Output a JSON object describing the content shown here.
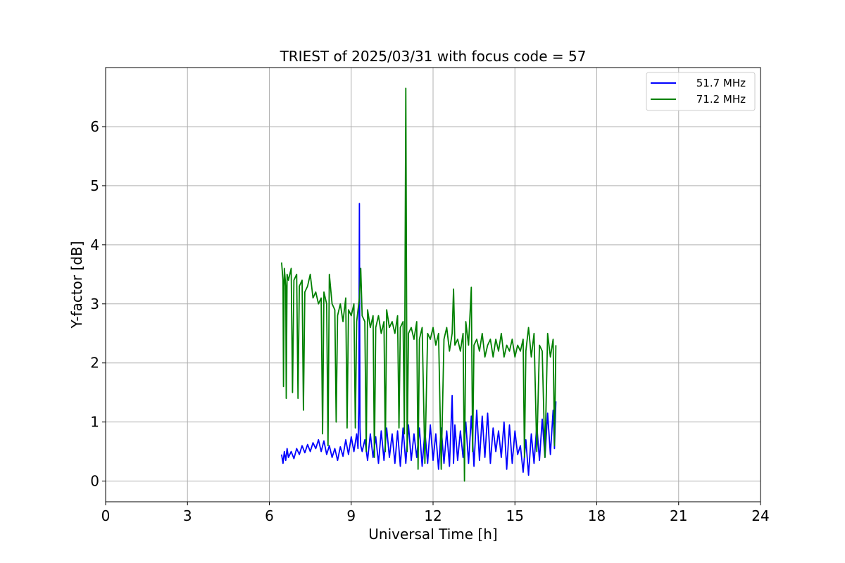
{
  "chart_data": {
    "type": "line",
    "title": "TRIEST of 2025/03/31 with focus code = 57",
    "xlabel": "Universal Time [h]",
    "ylabel": "Y-factor [dB]",
    "xlim": [
      0,
      24
    ],
    "ylim": [
      -0.35,
      7.0
    ],
    "x_ticks": [
      0,
      3,
      6,
      9,
      12,
      15,
      18,
      21,
      24
    ],
    "y_ticks": [
      0,
      1,
      2,
      3,
      4,
      5,
      6
    ],
    "grid": true,
    "legend_position": "top-right",
    "series": [
      {
        "name": "51.7 MHz",
        "color": "#0000ff",
        "x": [
          6.45,
          6.5,
          6.55,
          6.6,
          6.65,
          6.7,
          6.8,
          6.9,
          7.0,
          7.1,
          7.2,
          7.3,
          7.4,
          7.5,
          7.6,
          7.7,
          7.8,
          7.9,
          8.0,
          8.1,
          8.2,
          8.3,
          8.4,
          8.5,
          8.6,
          8.7,
          8.8,
          8.9,
          9.0,
          9.1,
          9.2,
          9.25,
          9.28,
          9.3,
          9.32,
          9.35,
          9.4,
          9.5,
          9.6,
          9.7,
          9.8,
          9.9,
          10.0,
          10.1,
          10.2,
          10.3,
          10.4,
          10.5,
          10.6,
          10.7,
          10.8,
          10.9,
          11.0,
          11.1,
          11.2,
          11.3,
          11.4,
          11.5,
          11.6,
          11.7,
          11.8,
          11.9,
          12.0,
          12.1,
          12.2,
          12.3,
          12.4,
          12.5,
          12.6,
          12.7,
          12.75,
          12.8,
          12.9,
          13.0,
          13.1,
          13.2,
          13.3,
          13.4,
          13.5,
          13.6,
          13.7,
          13.8,
          13.9,
          14.0,
          14.1,
          14.2,
          14.3,
          14.4,
          14.5,
          14.6,
          14.7,
          14.8,
          14.9,
          15.0,
          15.1,
          15.2,
          15.3,
          15.4,
          15.5,
          15.6,
          15.7,
          15.8,
          15.9,
          16.0,
          16.1,
          16.2,
          16.3,
          16.4,
          16.45,
          16.5
        ],
        "y": [
          0.45,
          0.3,
          0.5,
          0.35,
          0.55,
          0.4,
          0.5,
          0.38,
          0.55,
          0.45,
          0.6,
          0.48,
          0.62,
          0.5,
          0.65,
          0.55,
          0.7,
          0.5,
          0.68,
          0.45,
          0.6,
          0.4,
          0.55,
          0.35,
          0.58,
          0.42,
          0.7,
          0.45,
          0.75,
          0.5,
          0.8,
          0.55,
          1.3,
          4.7,
          0.9,
          0.6,
          0.5,
          0.7,
          0.35,
          0.8,
          0.4,
          0.75,
          0.3,
          0.85,
          0.35,
          0.9,
          0.4,
          0.8,
          0.3,
          0.85,
          0.25,
          0.9,
          0.3,
          0.95,
          0.35,
          0.8,
          0.4,
          0.9,
          0.25,
          0.85,
          0.3,
          0.95,
          0.35,
          0.8,
          0.2,
          0.9,
          0.3,
          0.85,
          0.25,
          1.45,
          0.3,
          0.95,
          0.35,
          0.85,
          0.4,
          1.0,
          0.3,
          1.1,
          0.25,
          1.2,
          0.35,
          1.1,
          0.4,
          1.15,
          0.3,
          0.9,
          0.5,
          0.85,
          0.4,
          1.0,
          0.2,
          0.95,
          0.3,
          0.85,
          0.45,
          0.6,
          0.15,
          0.7,
          0.1,
          0.8,
          0.3,
          0.95,
          0.35,
          1.05,
          0.4,
          1.15,
          0.45,
          1.2,
          0.55,
          1.35
        ]
      },
      {
        "name": "71.2 MHz",
        "color": "#008000",
        "x": [
          6.45,
          6.5,
          6.52,
          6.55,
          6.6,
          6.62,
          6.65,
          6.7,
          6.8,
          6.85,
          6.9,
          7.0,
          7.05,
          7.1,
          7.2,
          7.25,
          7.3,
          7.4,
          7.5,
          7.6,
          7.7,
          7.8,
          7.9,
          7.95,
          8.0,
          8.1,
          8.15,
          8.2,
          8.3,
          8.4,
          8.45,
          8.5,
          8.6,
          8.7,
          8.8,
          8.85,
          8.9,
          9.0,
          9.1,
          9.15,
          9.2,
          9.3,
          9.35,
          9.4,
          9.5,
          9.55,
          9.6,
          9.7,
          9.8,
          9.85,
          9.9,
          10.0,
          10.1,
          10.2,
          10.25,
          10.3,
          10.4,
          10.5,
          10.6,
          10.7,
          10.75,
          10.8,
          10.9,
          10.95,
          11.0,
          11.05,
          11.1,
          11.2,
          11.3,
          11.4,
          11.45,
          11.5,
          11.6,
          11.7,
          11.8,
          11.9,
          12.0,
          12.1,
          12.2,
          12.3,
          12.4,
          12.5,
          12.6,
          12.7,
          12.75,
          12.8,
          12.9,
          13.0,
          13.1,
          13.15,
          13.2,
          13.3,
          13.4,
          13.45,
          13.5,
          13.6,
          13.7,
          13.8,
          13.9,
          14.0,
          14.1,
          14.2,
          14.3,
          14.4,
          14.5,
          14.6,
          14.7,
          14.8,
          14.9,
          15.0,
          15.1,
          15.2,
          15.3,
          15.35,
          15.4,
          15.5,
          15.6,
          15.7,
          15.8,
          15.9,
          16.0,
          16.1,
          16.2,
          16.3,
          16.4,
          16.45,
          16.5
        ],
        "y": [
          3.7,
          3.4,
          1.6,
          3.6,
          3.3,
          1.4,
          3.5,
          3.4,
          3.6,
          1.5,
          3.4,
          3.5,
          1.4,
          3.3,
          3.4,
          1.2,
          3.2,
          3.3,
          3.5,
          3.1,
          3.2,
          3.0,
          3.1,
          0.8,
          3.2,
          3.0,
          0.6,
          3.5,
          3.0,
          2.9,
          1.0,
          2.8,
          3.0,
          2.7,
          3.1,
          0.9,
          2.9,
          2.8,
          3.0,
          0.9,
          2.7,
          3.1,
          3.6,
          2.8,
          2.7,
          0.5,
          2.9,
          2.6,
          2.8,
          0.4,
          2.6,
          2.8,
          2.5,
          2.7,
          0.5,
          2.9,
          2.6,
          2.7,
          2.5,
          2.8,
          0.9,
          2.6,
          2.7,
          0.8,
          6.65,
          0.5,
          2.5,
          2.6,
          2.4,
          2.7,
          0.2,
          2.4,
          2.6,
          0.3,
          2.5,
          2.4,
          2.6,
          2.3,
          2.5,
          0.2,
          2.4,
          2.6,
          2.2,
          2.5,
          3.25,
          2.3,
          2.4,
          2.2,
          2.5,
          0.0,
          2.7,
          2.3,
          3.28,
          0.5,
          2.3,
          2.4,
          2.2,
          2.5,
          2.1,
          2.3,
          2.4,
          2.1,
          2.4,
          2.2,
          2.5,
          2.1,
          2.3,
          2.2,
          2.4,
          2.1,
          2.3,
          2.2,
          2.4,
          0.4,
          2.2,
          2.6,
          2.1,
          2.5,
          0.5,
          2.3,
          2.2,
          0.4,
          2.5,
          2.1,
          2.4,
          0.6,
          2.3
        ]
      }
    ]
  }
}
